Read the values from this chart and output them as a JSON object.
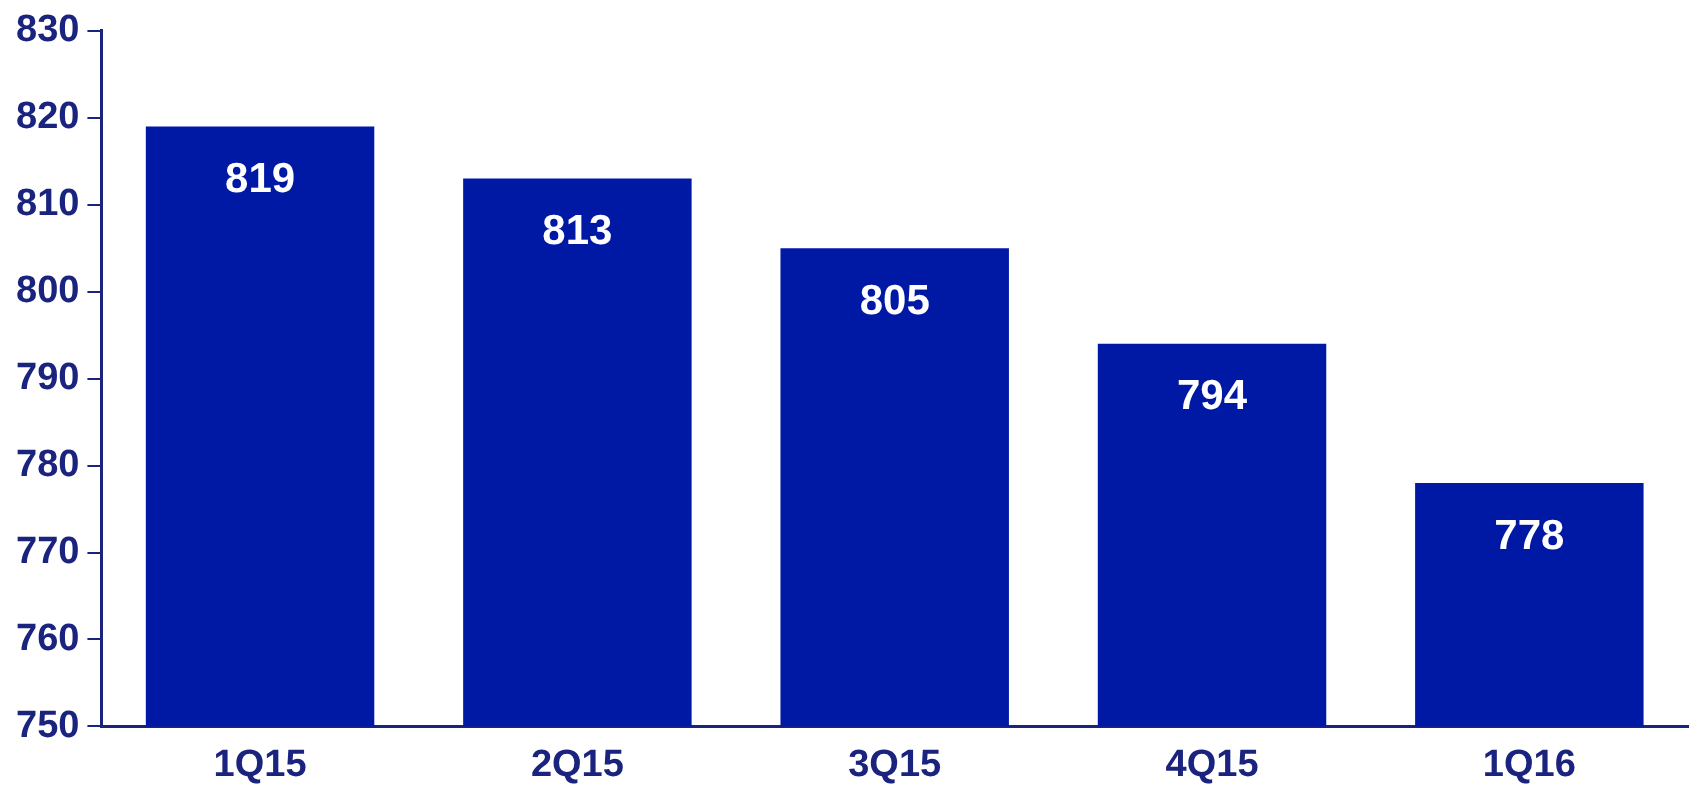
{
  "chart_data": {
    "type": "bar",
    "categories": [
      "1Q15",
      "2Q15",
      "3Q15",
      "4Q15",
      "1Q16"
    ],
    "values": [
      819,
      813,
      805,
      794,
      778
    ],
    "color": "#0019a5",
    "ylim": [
      750,
      830
    ],
    "yticks": [
      750,
      760,
      770,
      780,
      790,
      800,
      810,
      820,
      830
    ],
    "grid": false,
    "data_labels": true
  }
}
